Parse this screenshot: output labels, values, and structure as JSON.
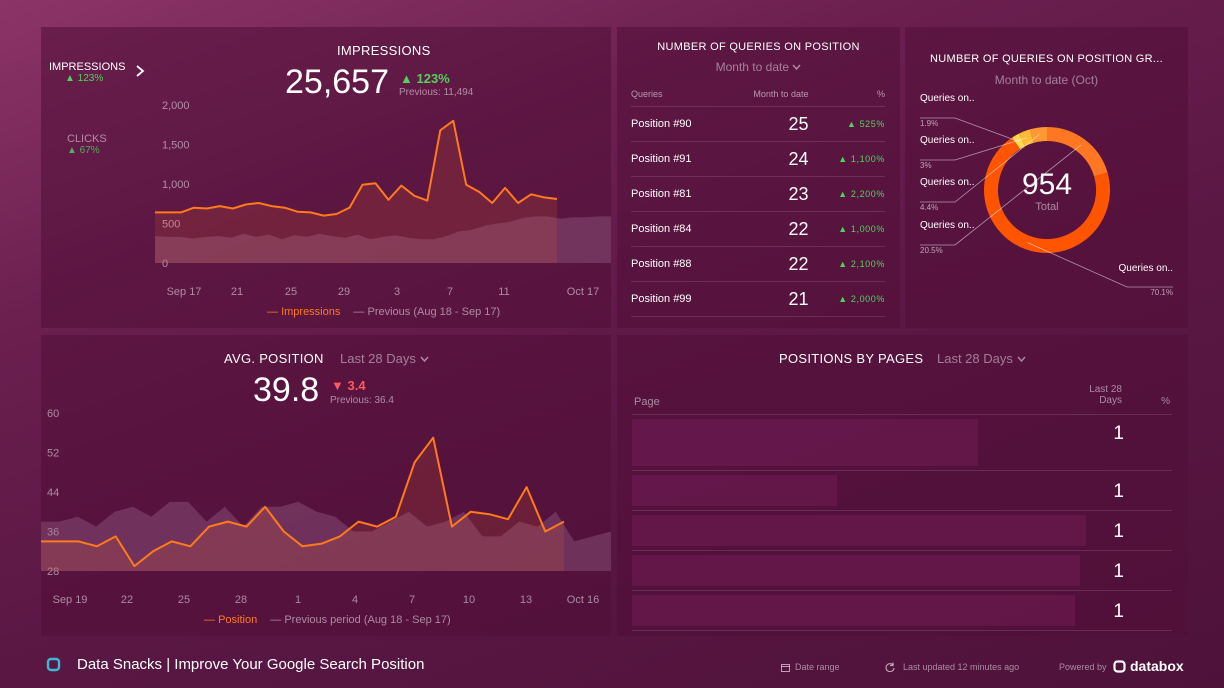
{
  "impressions": {
    "title": "IMPRESSIONS",
    "value": "25,657",
    "change": "▲ 123%",
    "previous": "Previous: 11,494",
    "side_metrics": [
      {
        "label": "IMPRESSIONS",
        "change": "▲ 123%"
      },
      {
        "label": "CLICKS",
        "change": "▲ 67%"
      }
    ],
    "legend": {
      "current": "Impressions",
      "previous": "Previous (Aug 18 - Sep 17)"
    },
    "colors": {
      "current": "#ff7a1a",
      "previous": "#9a6a8e"
    }
  },
  "queries": {
    "title": "NUMBER OF QUERIES ON POSITION",
    "period": "Month to date",
    "headers": [
      "Queries",
      "Month to date",
      "%"
    ],
    "rows": [
      {
        "name": "Position #90",
        "value": "25",
        "pct": "▲ 525%"
      },
      {
        "name": "Position #91",
        "value": "24",
        "pct": "▲ 1,100%"
      },
      {
        "name": "Position #81",
        "value": "23",
        "pct": "▲ 2,200%"
      },
      {
        "name": "Position #84",
        "value": "22",
        "pct": "▲ 1,000%"
      },
      {
        "name": "Position #88",
        "value": "22",
        "pct": "▲ 2,100%"
      },
      {
        "name": "Position #99",
        "value": "21",
        "pct": "▲ 2,000%"
      }
    ]
  },
  "donut": {
    "title": "NUMBER OF QUERIES ON POSITION GR...",
    "period": "Month to date (Oct)",
    "total": "954",
    "total_label": "Total"
  },
  "avg_position": {
    "title": "AVG. POSITION",
    "period": "Last 28 Days",
    "value": "39.8",
    "change": "▼ 3.4",
    "previous": "Previous: 36.4",
    "legend": {
      "current": "Position",
      "previous": "Previous period (Aug 18 - Sep 17)"
    },
    "colors": {
      "current": "#ff7a1a",
      "previous": "#9a6a8e"
    }
  },
  "pages": {
    "title": "POSITIONS BY PAGES",
    "period": "Last 28 Days",
    "headers": {
      "page": "Page",
      "days_line1": "Last 28",
      "days_line2": "Days",
      "pct": "%"
    },
    "rows": [
      {
        "value": "1",
        "bar": 0.64
      },
      {
        "value": "1",
        "bar": 0.38
      },
      {
        "value": "1",
        "bar": 0.84
      },
      {
        "value": "1",
        "bar": 0.83
      },
      {
        "value": "1",
        "bar": 0.82
      }
    ]
  },
  "footer": {
    "title": "Data Snacks | Improve Your Google Search Position",
    "date_range": "Date range",
    "updated": "Last updated 12 minutes ago",
    "powered_by": "Powered by",
    "brand": "databox"
  },
  "chart_data": [
    {
      "type": "line",
      "title": "IMPRESSIONS",
      "ylim": [
        0,
        2000
      ],
      "yticks": [
        "2,000",
        "1,500",
        "1,000",
        "500",
        "0"
      ],
      "x_ticks": [
        "Sep 17",
        "21",
        "25",
        "29",
        "3",
        "7",
        "11",
        "Oct 17"
      ],
      "series": [
        {
          "name": "Impressions",
          "values": [
            640,
            640,
            640,
            700,
            690,
            720,
            690,
            740,
            760,
            720,
            700,
            650,
            640,
            600,
            620,
            700,
            990,
            1010,
            800,
            980,
            850,
            790,
            1680,
            1800,
            990,
            900,
            760,
            950,
            760,
            870,
            830,
            810
          ]
        },
        {
          "name": "Previous (Aug 18 - Sep 17)",
          "values": [
            340,
            330,
            330,
            310,
            330,
            340,
            320,
            370,
            330,
            360,
            300,
            350,
            330,
            370,
            340,
            320,
            360,
            300,
            330,
            350,
            320,
            300,
            300,
            340,
            400,
            420,
            470,
            500,
            520,
            570,
            590,
            590,
            560,
            580,
            580,
            590,
            590
          ]
        }
      ]
    },
    {
      "type": "line",
      "title": "AVG. POSITION",
      "ylim": [
        28,
        60
      ],
      "yticks": [
        "60",
        "52",
        "44",
        "36",
        "28"
      ],
      "x_ticks": [
        "Sep 19",
        "22",
        "25",
        "28",
        "1",
        "4",
        "7",
        "10",
        "13",
        "Oct 16"
      ],
      "series": [
        {
          "name": "Position",
          "values": [
            34,
            34,
            34,
            33,
            35,
            29,
            32,
            34,
            33,
            37,
            38,
            37,
            41,
            36,
            33,
            33.5,
            35,
            38,
            37,
            39,
            50,
            55,
            37,
            40,
            39.5,
            38.5,
            45,
            36,
            38
          ]
        },
        {
          "name": "Previous period (Aug 18 - Sep 17)",
          "values": [
            38,
            38,
            39,
            37,
            40,
            41,
            39,
            42,
            42,
            38,
            41,
            37,
            41,
            41,
            42,
            40,
            39,
            36,
            36,
            38,
            40,
            37,
            38,
            40,
            35,
            35,
            38,
            37,
            40,
            34,
            35,
            36
          ]
        }
      ]
    },
    {
      "type": "pie",
      "title": "NUMBER OF QUERIES ON POSITION GR...",
      "categories": [
        "Queries on..",
        "Queries on..",
        "Queries on..",
        "Queries on..",
        "Queries on.."
      ],
      "values": [
        1.9,
        3,
        4.4,
        20.5,
        70.1
      ],
      "labels": [
        "1.9%",
        "3%",
        "4.4%",
        "20.5%",
        "70.1%"
      ],
      "colors": [
        "#ffd84d",
        "#ffbb33",
        "#ff9933",
        "#ff7722",
        "#ff5500"
      ]
    }
  ]
}
